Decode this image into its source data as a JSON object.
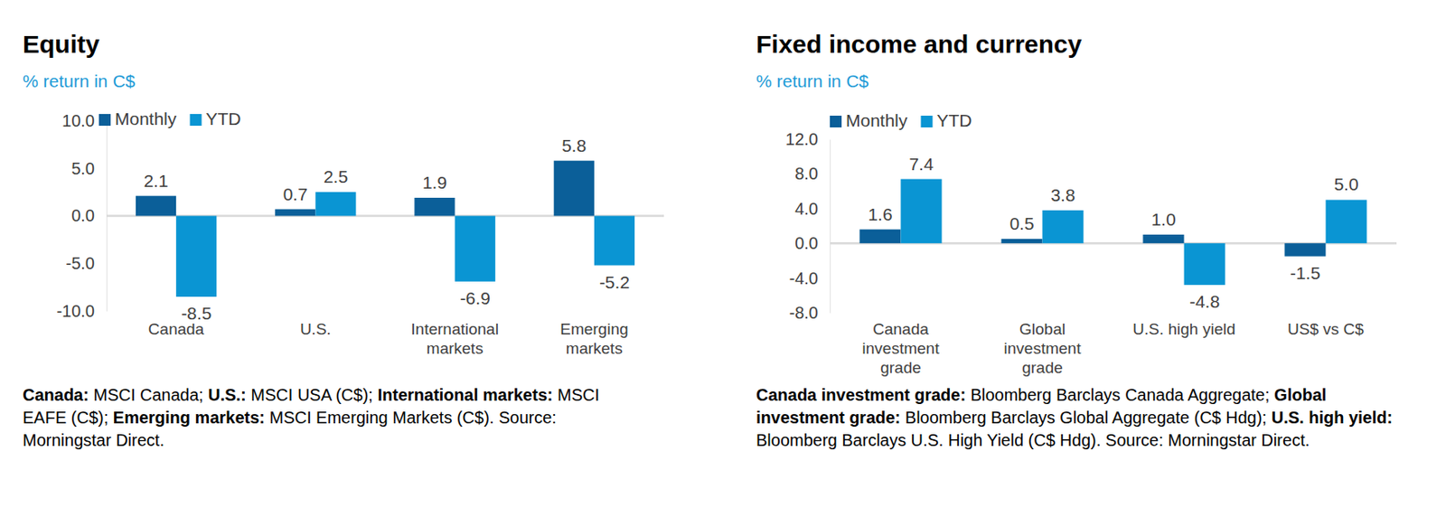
{
  "chart_data": [
    {
      "type": "bar",
      "title": "Equity",
      "subtitle": "% return in C$",
      "categories": [
        "Canada",
        "U.S.",
        "International markets",
        "Emerging markets"
      ],
      "series": [
        {
          "name": "Monthly",
          "color": "#0b5f99",
          "values": [
            2.1,
            0.7,
            1.9,
            5.8
          ],
          "value_labels": [
            "2.1",
            "0.7",
            "1.9",
            "5.8"
          ]
        },
        {
          "name": "YTD",
          "color": "#0a95d3",
          "values": [
            -8.5,
            2.5,
            -6.9,
            -5.2
          ],
          "value_labels": [
            "-8.5",
            "2.5",
            "-6.9",
            "-5.2"
          ]
        }
      ],
      "ylim": [
        -10,
        10
      ],
      "yticks": [
        {
          "value": 10,
          "label": "10.0"
        },
        {
          "value": 5,
          "label": "5.0"
        },
        {
          "value": 0,
          "label": "0.0"
        },
        {
          "value": -5,
          "label": "-5.0"
        },
        {
          "value": -10,
          "label": "-10.0"
        }
      ],
      "grid": false,
      "legend": "top",
      "data_labels": true,
      "notes": [
        {
          "label": "Canada:",
          "text": "MSCI Canada;"
        },
        {
          "label": "U.S.:",
          "text": "MSCI USA (C$);"
        },
        {
          "label": "International markets:",
          "text": "MSCI EAFE (C$);"
        },
        {
          "label": "Emerging markets:",
          "text": "MSCI Emerging Markets (C$)."
        }
      ],
      "source": "Source: Morningstar Direct."
    },
    {
      "type": "bar",
      "title": "Fixed income and currency",
      "subtitle": "% return in C$",
      "categories": [
        "Canada investment grade",
        "Global investment grade",
        "U.S. high yield",
        "US$ vs C$"
      ],
      "series": [
        {
          "name": "Monthly",
          "color": "#0b5f99",
          "values": [
            1.6,
            0.5,
            1.0,
            -1.5
          ],
          "value_labels": [
            "1.6",
            "0.5",
            "1.0",
            "-1.5"
          ]
        },
        {
          "name": "YTD",
          "color": "#0a95d3",
          "values": [
            7.4,
            3.8,
            -4.8,
            5.0
          ],
          "value_labels": [
            "7.4",
            "3.8",
            "-4.8",
            "5.0"
          ]
        }
      ],
      "ylim": [
        -8,
        12
      ],
      "yticks": [
        {
          "value": 12,
          "label": "12.0"
        },
        {
          "value": 8,
          "label": "8.0"
        },
        {
          "value": 4,
          "label": "4.0"
        },
        {
          "value": 0,
          "label": "0.0"
        },
        {
          "value": -4,
          "label": "-4.0"
        },
        {
          "value": -8,
          "label": "-8.0"
        }
      ],
      "grid": false,
      "legend": "top",
      "data_labels": true,
      "notes": [
        {
          "label": "Canada investment grade:",
          "text": "Bloomberg Barclays Canada Aggregate;"
        },
        {
          "label": "Global investment grade:",
          "text": "Bloomberg Barclays Global Aggregate (C$ Hdg);"
        },
        {
          "label": "U.S. high yield:",
          "text": "Bloomberg Barclays U.S. High Yield (C$ Hdg)."
        }
      ],
      "source": "Source: Morningstar Direct."
    }
  ]
}
